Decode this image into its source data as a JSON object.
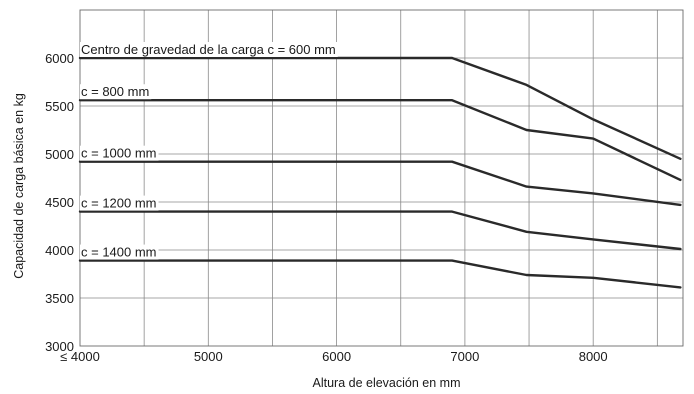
{
  "chart_data": {
    "type": "line",
    "title": "",
    "xlabel": "Altura de elevación en mm",
    "ylabel": "Capacidad de carga básica en kg",
    "xlim": [
      4000,
      8700
    ],
    "ylim": [
      3000,
      6500
    ],
    "x_tick_values": [
      4000,
      5000,
      6000,
      7000,
      8000
    ],
    "x_tick_labels": [
      "≤ 4000",
      "5000",
      "6000",
      "7000",
      "8000"
    ],
    "x_grid": [
      4000,
      4500,
      5000,
      5500,
      6000,
      6500,
      7000,
      7500,
      8000,
      8500
    ],
    "y_tick_values": [
      3000,
      3500,
      4000,
      4500,
      5000,
      5500,
      6000
    ],
    "y_tick_labels": [
      "3000",
      "3500",
      "4000",
      "4500",
      "5000",
      "5500",
      "6000"
    ],
    "y_grid": [
      3000,
      3500,
      4000,
      4500,
      5000,
      5500,
      6000
    ],
    "grid": true,
    "series": [
      {
        "name": "Centro de gravedad de la carga c = 600 mm",
        "points": [
          [
            4000,
            6000
          ],
          [
            6900,
            6000
          ],
          [
            7480,
            5720
          ],
          [
            8000,
            5360
          ],
          [
            8680,
            4950
          ]
        ]
      },
      {
        "name": "c = 800 mm",
        "points": [
          [
            4000,
            5560
          ],
          [
            6900,
            5560
          ],
          [
            7480,
            5250
          ],
          [
            8000,
            5160
          ],
          [
            8680,
            4730
          ]
        ]
      },
      {
        "name": "c = 1000 mm",
        "points": [
          [
            4000,
            4920
          ],
          [
            6900,
            4920
          ],
          [
            7480,
            4660
          ],
          [
            8000,
            4590
          ],
          [
            8680,
            4470
          ]
        ]
      },
      {
        "name": "c = 1200 mm",
        "points": [
          [
            4000,
            4400
          ],
          [
            6900,
            4400
          ],
          [
            7480,
            4190
          ],
          [
            8000,
            4110
          ],
          [
            8680,
            4010
          ]
        ]
      },
      {
        "name": "c = 1400 mm",
        "points": [
          [
            4000,
            3890
          ],
          [
            6900,
            3890
          ],
          [
            7480,
            3740
          ],
          [
            8000,
            3710
          ],
          [
            8680,
            3610
          ]
        ]
      }
    ]
  }
}
